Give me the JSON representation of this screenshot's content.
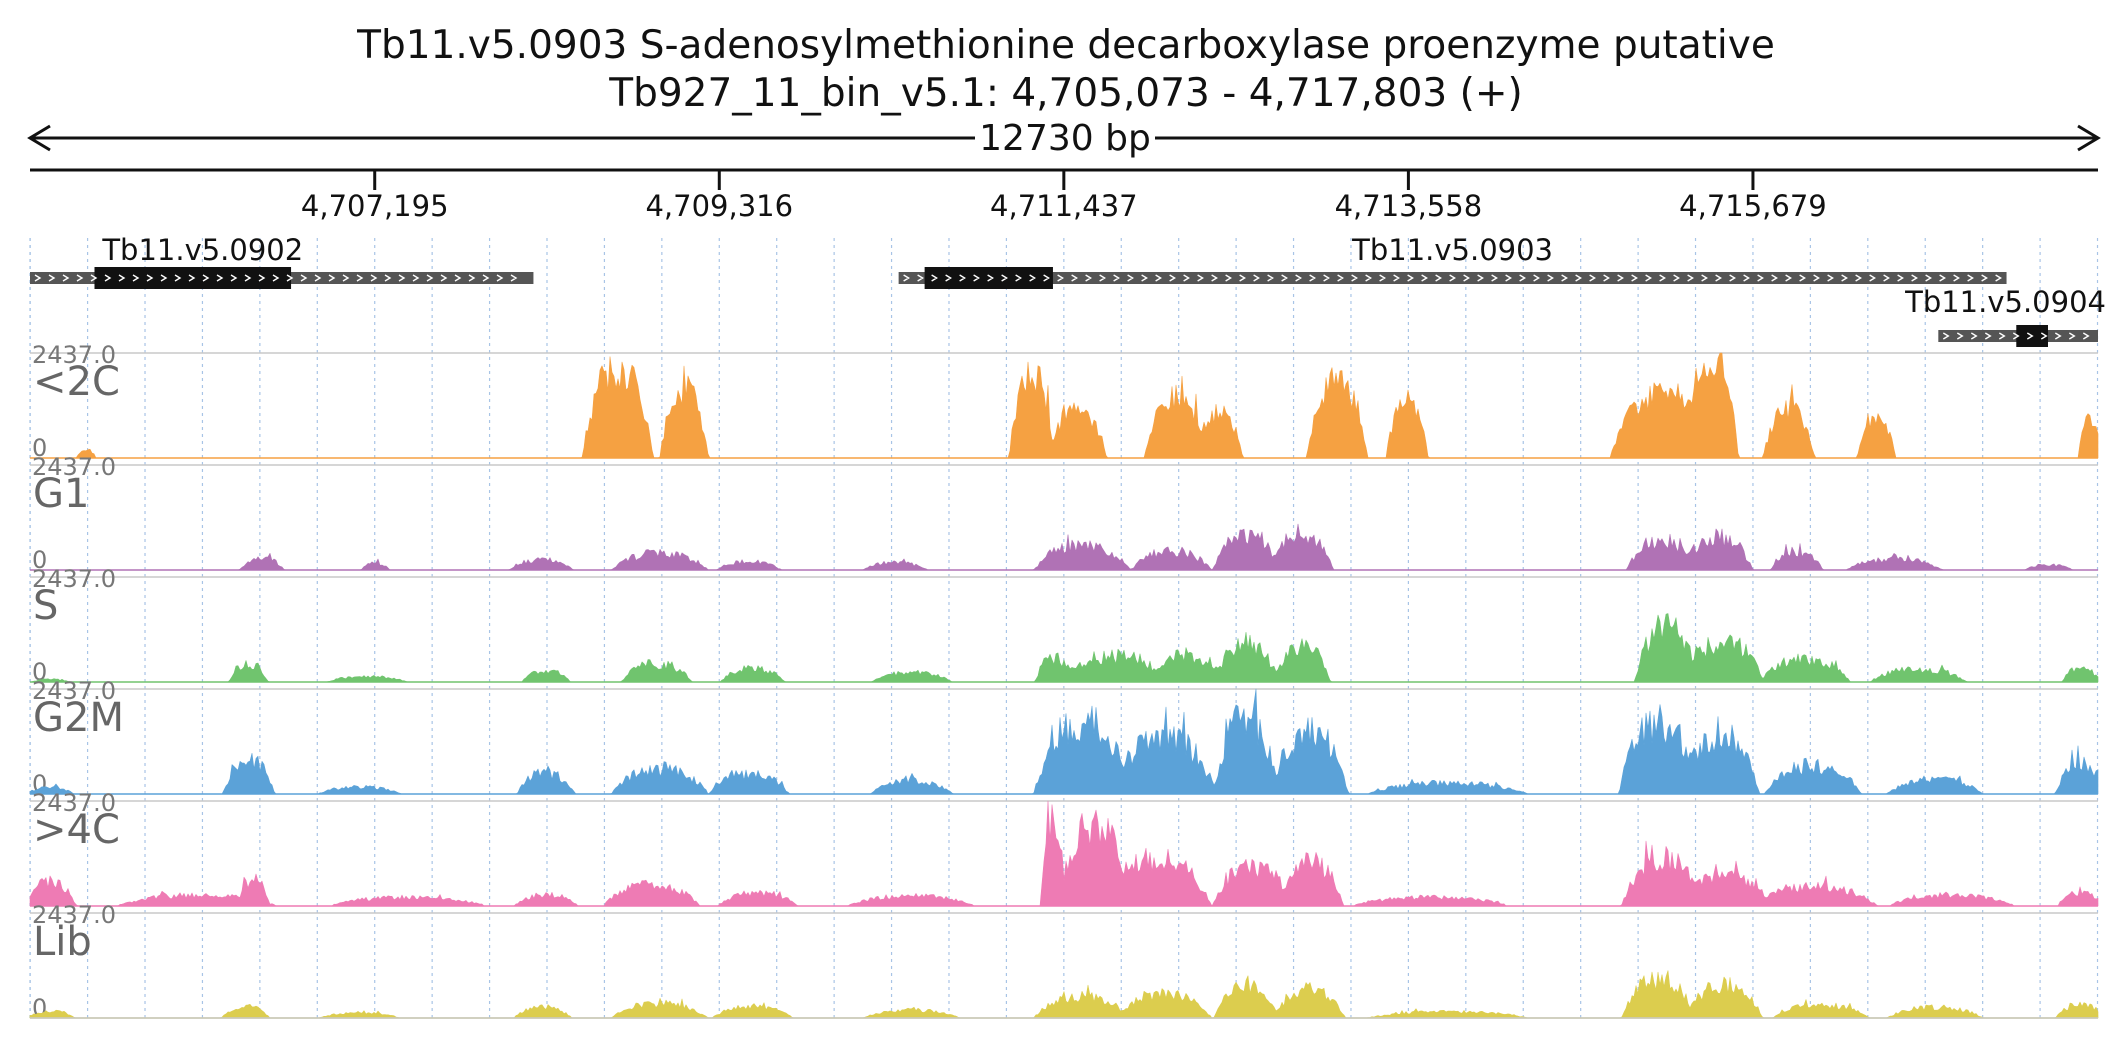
{
  "chart_data": {
    "type": "area",
    "title": "Tb11.v5.0903  S-adenosylmethionine decarboxylase proenzyme  putative",
    "subtitle": "Tb927_11_bin_v5.1: 4,705,073 - 4,717,803 (+)",
    "span_label": "12730 bp",
    "xlim": [
      4705073,
      4717803
    ],
    "ticks": [
      {
        "value": 4707195,
        "label": "4,707,195"
      },
      {
        "value": 4709316,
        "label": "4,709,316"
      },
      {
        "value": 4711437,
        "label": "4,711,437"
      },
      {
        "value": 4713558,
        "label": "4,713,558"
      },
      {
        "value": 4715679,
        "label": "4,715,679"
      }
    ],
    "grid": true,
    "genes": [
      {
        "name": "Tb11.v5.0902",
        "start": 4705073,
        "end": 4708172,
        "cds": [
          4705470,
          4706680
        ],
        "row": 0
      },
      {
        "name": "Tb11.v5.0903",
        "start": 4710420,
        "end": 4717240,
        "cds": [
          4710580,
          4711370
        ],
        "row": 0
      },
      {
        "name": "Tb11.v5.0904",
        "start": 4716820,
        "end": 4717803,
        "cds": [
          4717300,
          4717950
        ],
        "row": 1
      }
    ],
    "ylim": [
      0,
      2437.0
    ],
    "ymax_label": "2437.0",
    "ymin_label": "0",
    "series": [
      {
        "name": "<2C",
        "color": "#f5a142",
        "scale": 1.0,
        "peaks": [
          [
            4705420,
            60,
            190
          ],
          [
            4708690,
            220,
            2050
          ],
          [
            4709100,
            150,
            1600
          ],
          [
            4711240,
            140,
            2000
          ],
          [
            4711520,
            180,
            1100
          ],
          [
            4712130,
            200,
            1400
          ],
          [
            4712400,
            140,
            1000
          ],
          [
            4713120,
            190,
            1800
          ],
          [
            4713550,
            130,
            1300
          ],
          [
            4715130,
            330,
            1500
          ],
          [
            4715420,
            170,
            2437
          ],
          [
            4715900,
            160,
            1100
          ],
          [
            4716440,
            120,
            900
          ],
          [
            4717760,
            80,
            900
          ]
        ],
        "noise": 0.45,
        "baseline": 20
      },
      {
        "name": "G1",
        "color": "#b072b5",
        "scale": 1.0,
        "peaks": [
          [
            4706500,
            140,
            280
          ],
          [
            4707200,
            90,
            160
          ],
          [
            4708220,
            200,
            240
          ],
          [
            4708950,
            300,
            380
          ],
          [
            4709500,
            200,
            190
          ],
          [
            4710400,
            200,
            170
          ],
          [
            4711340,
            90,
            200
          ],
          [
            4711550,
            300,
            560
          ],
          [
            4712100,
            250,
            430
          ],
          [
            4712560,
            210,
            820
          ],
          [
            4712900,
            200,
            780
          ],
          [
            4715120,
            220,
            680
          ],
          [
            4715460,
            220,
            750
          ],
          [
            4715950,
            160,
            420
          ],
          [
            4716550,
            300,
            250
          ],
          [
            4717500,
            150,
            120
          ]
        ],
        "noise": 0.6,
        "baseline": 15
      },
      {
        "name": "S",
        "color": "#70c46e",
        "scale": 1.0,
        "peaks": [
          [
            4705200,
            120,
            60
          ],
          [
            4706420,
            120,
            420
          ],
          [
            4707150,
            250,
            130
          ],
          [
            4708250,
            150,
            260
          ],
          [
            4708930,
            220,
            420
          ],
          [
            4709520,
            200,
            320
          ],
          [
            4710500,
            250,
            220
          ],
          [
            4711380,
            120,
            550
          ],
          [
            4711750,
            340,
            600
          ],
          [
            4712200,
            230,
            620
          ],
          [
            4712560,
            200,
            900
          ],
          [
            4712900,
            180,
            800
          ],
          [
            4715150,
            200,
            1300
          ],
          [
            4715500,
            250,
            900
          ],
          [
            4716000,
            280,
            540
          ],
          [
            4716700,
            300,
            300
          ],
          [
            4717700,
            120,
            320
          ]
        ],
        "noise": 0.6,
        "baseline": 10
      },
      {
        "name": "G2M",
        "color": "#5ba2d8",
        "scale": 1.0,
        "peaks": [
          [
            4705200,
            150,
            150
          ],
          [
            4706420,
            160,
            750
          ],
          [
            4707100,
            260,
            160
          ],
          [
            4708250,
            180,
            480
          ],
          [
            4708950,
            300,
            580
          ],
          [
            4709500,
            250,
            450
          ],
          [
            4710500,
            260,
            300
          ],
          [
            4711550,
            300,
            1700
          ],
          [
            4712050,
            330,
            1300
          ],
          [
            4712560,
            200,
            1700
          ],
          [
            4712950,
            240,
            1400
          ],
          [
            4713800,
            500,
            250
          ],
          [
            4715100,
            250,
            1600
          ],
          [
            4715480,
            240,
            1400
          ],
          [
            4716050,
            300,
            650
          ],
          [
            4716800,
            300,
            320
          ],
          [
            4717700,
            160,
            700
          ]
        ],
        "noise": 0.6,
        "baseline": 30
      },
      {
        "name": ">4C",
        "color": "#ee7bb4",
        "scale": 1.0,
        "peaks": [
          [
            4705200,
            160,
            550
          ],
          [
            4706100,
            500,
            250
          ],
          [
            4706450,
            100,
            600
          ],
          [
            4707400,
            500,
            200
          ],
          [
            4708250,
            200,
            260
          ],
          [
            4708900,
            300,
            500
          ],
          [
            4709550,
            250,
            300
          ],
          [
            4710500,
            400,
            230
          ],
          [
            4711370,
            80,
            2000
          ],
          [
            4711620,
            220,
            1900
          ],
          [
            4712000,
            350,
            1100
          ],
          [
            4712600,
            250,
            900
          ],
          [
            4712960,
            200,
            1000
          ],
          [
            4713700,
            500,
            200
          ],
          [
            4715120,
            250,
            1100
          ],
          [
            4715500,
            300,
            700
          ],
          [
            4716050,
            400,
            450
          ],
          [
            4716900,
            400,
            250
          ],
          [
            4717700,
            150,
            300
          ]
        ],
        "noise": 0.55,
        "baseline": 60
      },
      {
        "name": "Lib",
        "color": "#dccd4e",
        "scale": 1.0,
        "peaks": [
          [
            4705200,
            150,
            150
          ],
          [
            4706400,
            150,
            260
          ],
          [
            4707100,
            250,
            120
          ],
          [
            4708230,
            180,
            250
          ],
          [
            4708950,
            300,
            330
          ],
          [
            4709520,
            250,
            280
          ],
          [
            4710500,
            300,
            180
          ],
          [
            4711550,
            300,
            500
          ],
          [
            4712050,
            300,
            550
          ],
          [
            4712560,
            200,
            780
          ],
          [
            4712950,
            220,
            650
          ],
          [
            4713800,
            500,
            150
          ],
          [
            4715100,
            230,
            900
          ],
          [
            4715500,
            240,
            750
          ],
          [
            4716100,
            300,
            300
          ],
          [
            4716800,
            300,
            250
          ],
          [
            4717700,
            160,
            300
          ]
        ],
        "noise": 0.55,
        "baseline": 15
      }
    ]
  }
}
